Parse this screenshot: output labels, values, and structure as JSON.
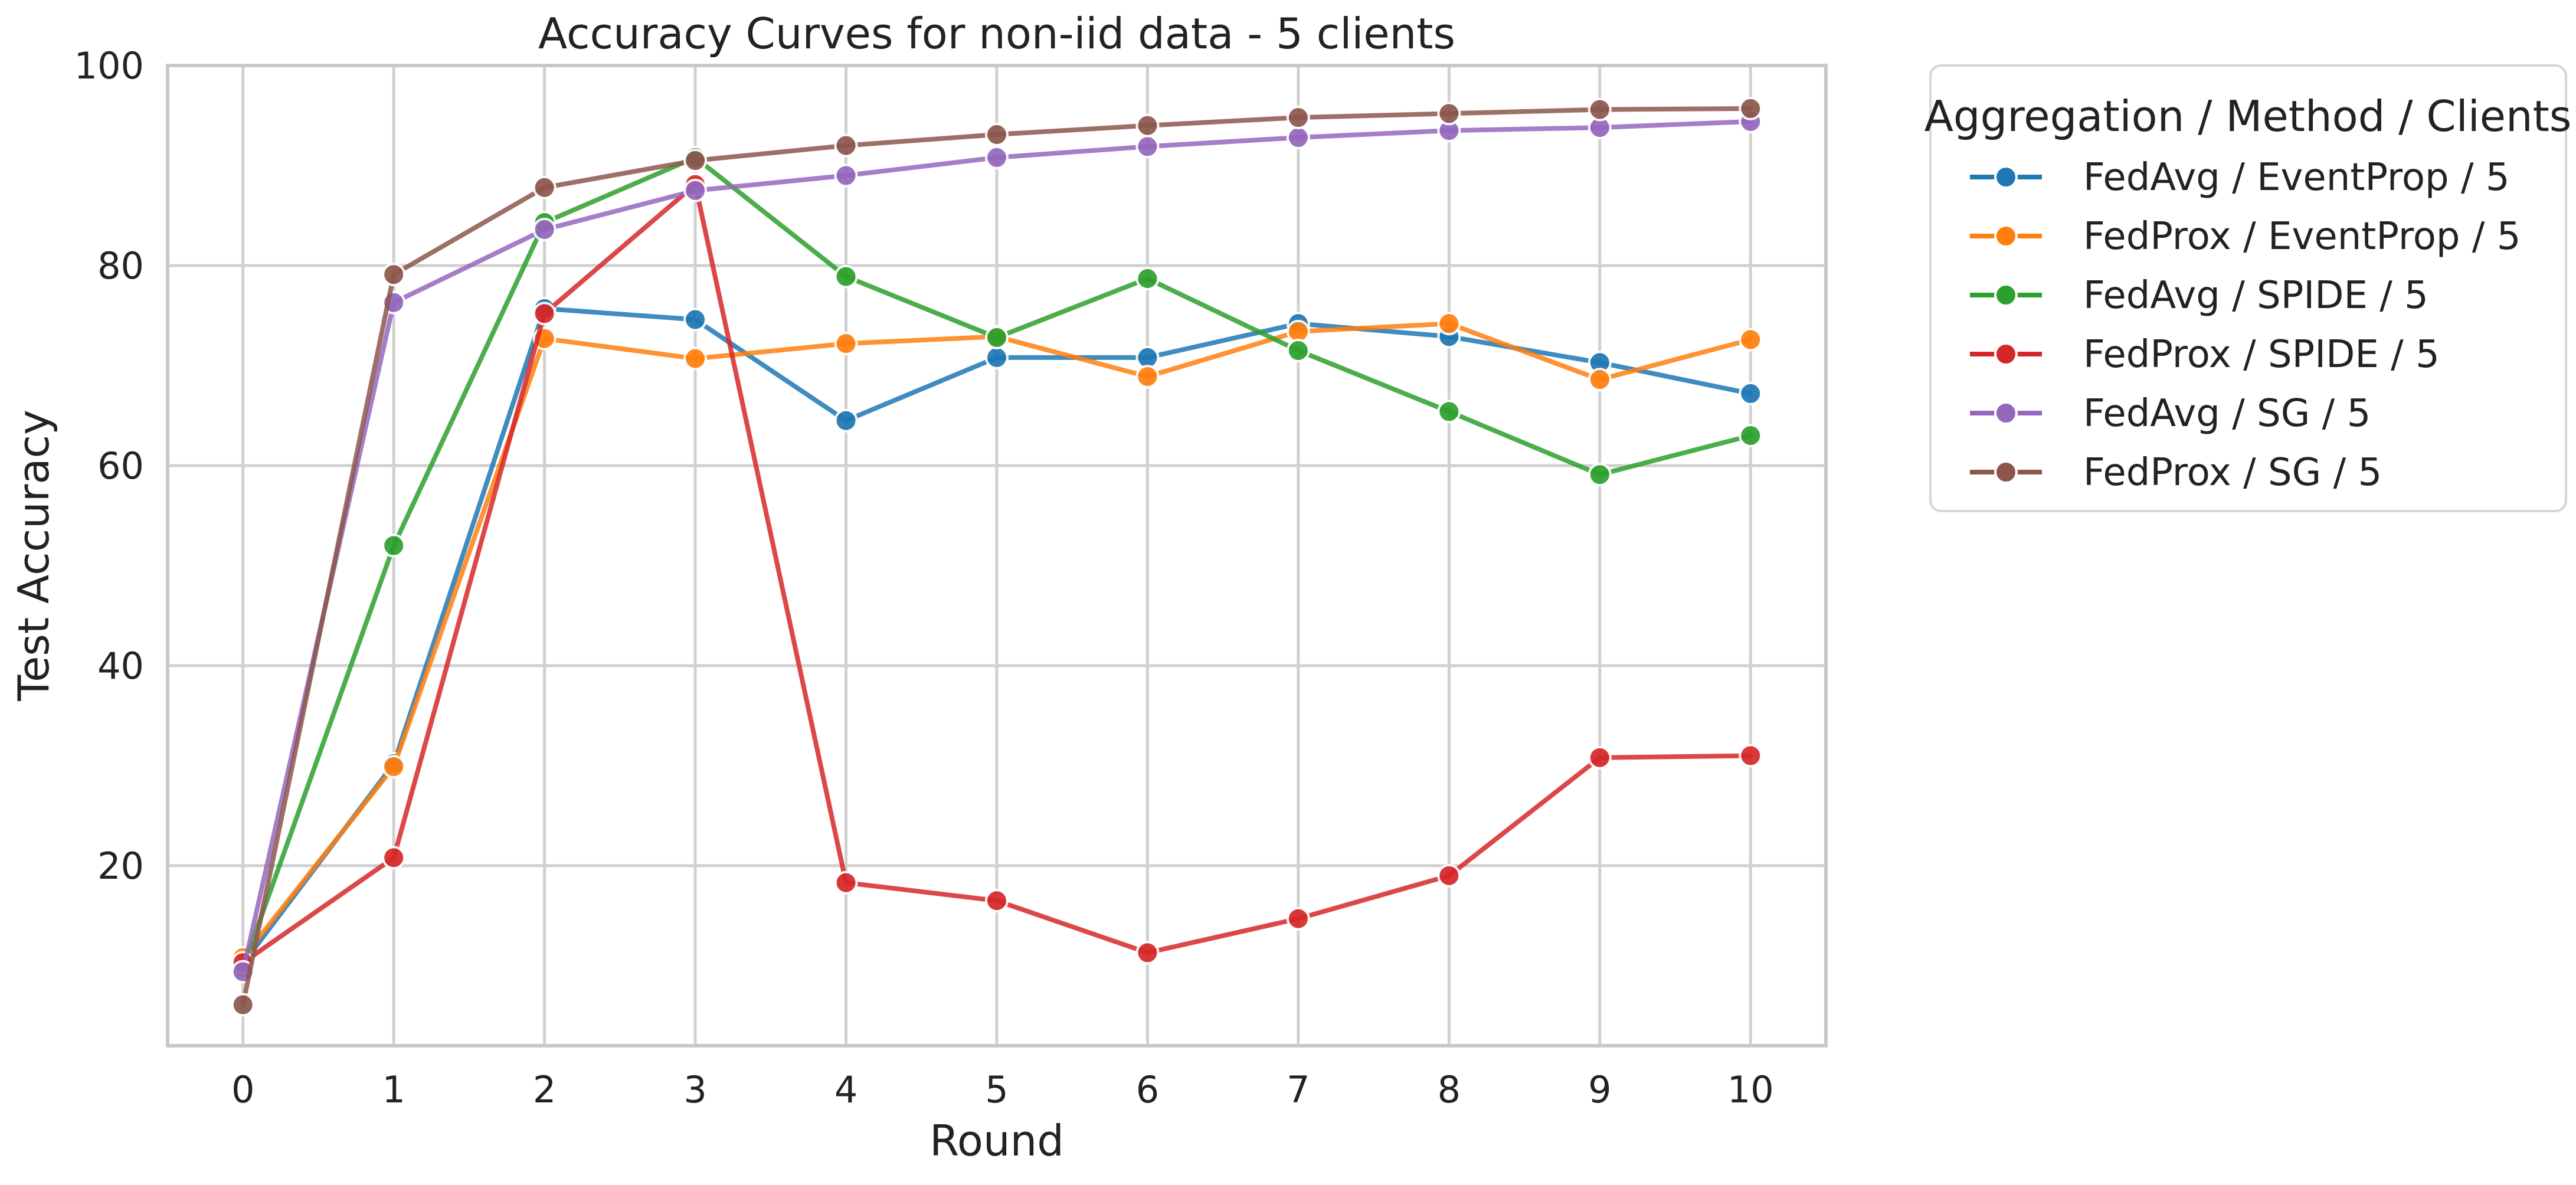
{
  "chart_data": {
    "type": "line",
    "title": "Accuracy Curves for non-iid data - 5 clients",
    "xlabel": "Round",
    "ylabel": "Test Accuracy",
    "x": [
      0,
      1,
      2,
      3,
      4,
      5,
      6,
      7,
      8,
      9,
      10
    ],
    "xlim": [
      -0.5,
      10.5
    ],
    "ylim": [
      2,
      100
    ],
    "xticks": [
      "0",
      "1",
      "2",
      "3",
      "4",
      "5",
      "6",
      "7",
      "8",
      "9",
      "10"
    ],
    "yticks": [
      20,
      40,
      60,
      80,
      100
    ],
    "ytick_labels": [
      "20",
      "40",
      "60",
      "80",
      "100"
    ],
    "grid": true,
    "legend": {
      "title": "Aggregation / Method / Clients",
      "placement": "outside-right"
    },
    "series": [
      {
        "name": "FedAvg / EventProp / 5",
        "color": "#1f77b4",
        "values": [
          10.2,
          30.2,
          75.7,
          74.6,
          64.5,
          70.8,
          70.8,
          74.2,
          72.9,
          70.3,
          67.2
        ]
      },
      {
        "name": "FedProx / EventProp / 5",
        "color": "#ff7f0e",
        "values": [
          10.8,
          29.9,
          72.7,
          70.7,
          72.2,
          72.9,
          68.9,
          73.4,
          74.2,
          68.6,
          72.6
        ]
      },
      {
        "name": "FedAvg / SPIDE / 5",
        "color": "#2ca02c",
        "values": [
          9.8,
          52.0,
          84.3,
          90.8,
          78.9,
          72.8,
          78.7,
          71.5,
          65.4,
          59.1,
          63.0
        ]
      },
      {
        "name": "FedProx / SPIDE / 5",
        "color": "#d62728",
        "values": [
          10.3,
          20.8,
          75.2,
          88.1,
          18.3,
          16.5,
          11.3,
          14.7,
          19.0,
          30.8,
          31.0
        ]
      },
      {
        "name": "FedAvg / SG / 5",
        "color": "#9467bd",
        "values": [
          9.4,
          76.3,
          83.6,
          87.5,
          89.0,
          90.8,
          91.9,
          92.8,
          93.5,
          93.8,
          94.4
        ]
      },
      {
        "name": "FedProx / SG / 5",
        "color": "#8c564b",
        "values": [
          6.1,
          79.1,
          87.8,
          90.5,
          92.0,
          93.1,
          94.0,
          94.8,
          95.2,
          95.6,
          95.7
        ]
      }
    ]
  }
}
